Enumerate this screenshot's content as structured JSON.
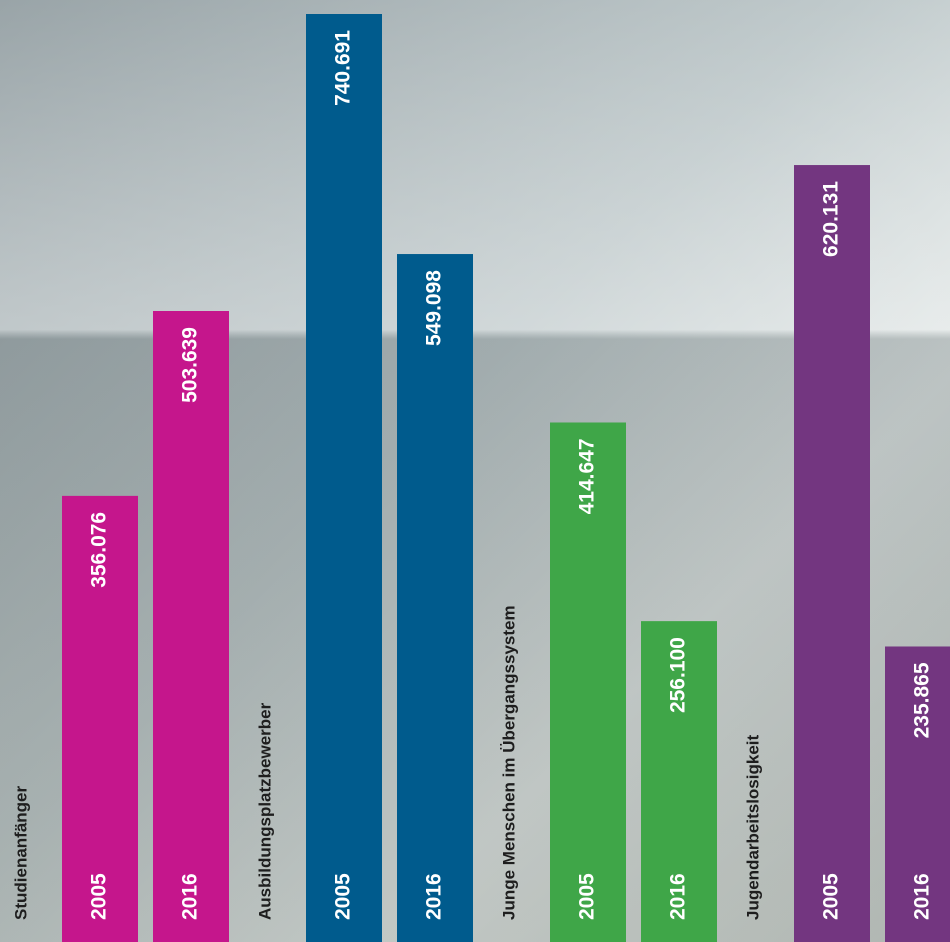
{
  "chart_data": {
    "type": "bar",
    "categories": [
      "Studienanfänger",
      "Ausbildungsplatzbewerber",
      "Junge Menschen im Übergangssystem",
      "Jugendarbeitslosigkeit"
    ],
    "colors": [
      "#c5168c",
      "#005b8d",
      "#3fa648",
      "#733680"
    ],
    "series": [
      {
        "name": "2005",
        "values": [
          356076,
          740691,
          414647,
          620131
        ],
        "value_labels": [
          "356.076",
          "740.691",
          "414.647",
          "620.131"
        ]
      },
      {
        "name": "2016",
        "values": [
          503639,
          549098,
          256100,
          235865
        ],
        "value_labels": [
          "503.639",
          "549.098",
          "256.100",
          "235.865"
        ]
      }
    ]
  }
}
